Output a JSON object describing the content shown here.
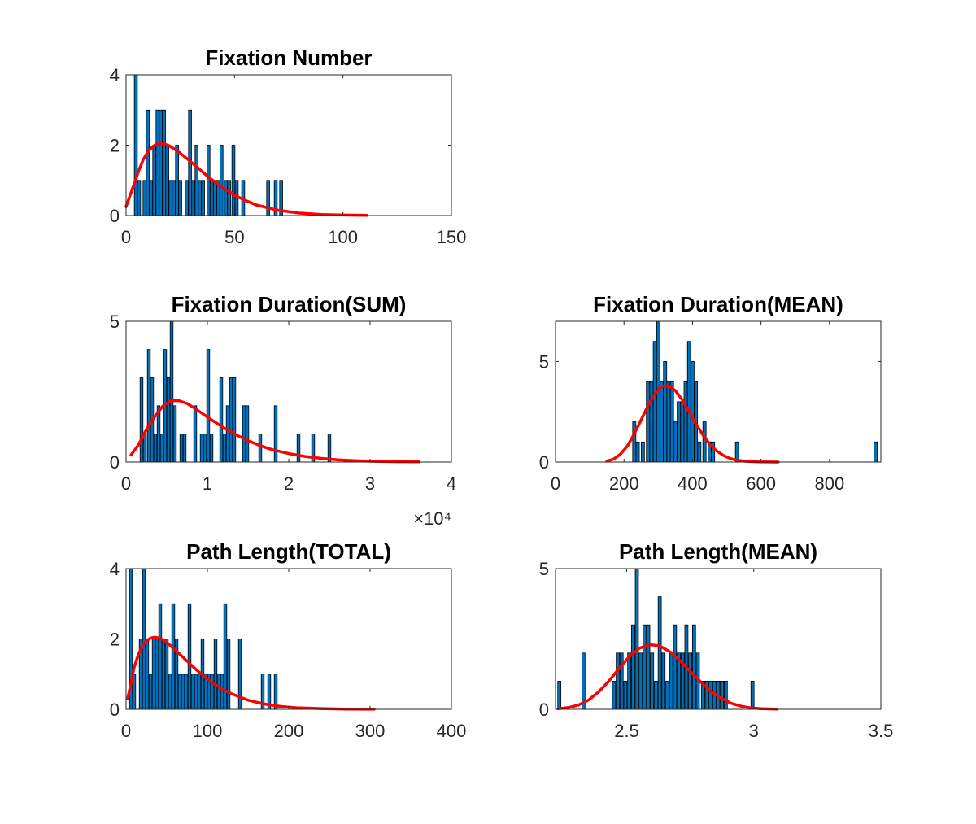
{
  "chart_data": [
    {
      "type": "bar",
      "title": "Fixation Number",
      "xlim": [
        0,
        150
      ],
      "ylim": [
        0,
        4
      ],
      "xticks": [
        0,
        50,
        100,
        150
      ],
      "xtick_labels": [
        "0",
        "50",
        "100",
        "150"
      ],
      "yticks": [
        0,
        2,
        4
      ],
      "ytick_labels": [
        "0",
        "2",
        "4"
      ],
      "exponent_label": "",
      "bin_width": 1.4,
      "bars": [
        {
          "x": 4.5,
          "y": 4
        },
        {
          "x": 6,
          "y": 1
        },
        {
          "x": 8.5,
          "y": 1
        },
        {
          "x": 10,
          "y": 3
        },
        {
          "x": 11.5,
          "y": 1
        },
        {
          "x": 13,
          "y": 2
        },
        {
          "x": 14.5,
          "y": 3
        },
        {
          "x": 16,
          "y": 3
        },
        {
          "x": 17.5,
          "y": 3
        },
        {
          "x": 19,
          "y": 2
        },
        {
          "x": 20.5,
          "y": 1
        },
        {
          "x": 22,
          "y": 1
        },
        {
          "x": 23.5,
          "y": 2
        },
        {
          "x": 25,
          "y": 1
        },
        {
          "x": 28,
          "y": 1
        },
        {
          "x": 29.5,
          "y": 3
        },
        {
          "x": 31,
          "y": 1
        },
        {
          "x": 32.5,
          "y": 2
        },
        {
          "x": 34,
          "y": 1
        },
        {
          "x": 35.5,
          "y": 1
        },
        {
          "x": 38,
          "y": 2
        },
        {
          "x": 39.5,
          "y": 1
        },
        {
          "x": 41,
          "y": 1
        },
        {
          "x": 42.5,
          "y": 1
        },
        {
          "x": 44,
          "y": 2
        },
        {
          "x": 46,
          "y": 1
        },
        {
          "x": 47.5,
          "y": 1
        },
        {
          "x": 49.5,
          "y": 2
        },
        {
          "x": 51,
          "y": 1
        },
        {
          "x": 54,
          "y": 1
        },
        {
          "x": 65.5,
          "y": 1
        },
        {
          "x": 69,
          "y": 1
        },
        {
          "x": 71.5,
          "y": 1
        }
      ],
      "fit": {
        "x": [
          0,
          2,
          4,
          6,
          8,
          10,
          12,
          14,
          16,
          18,
          20,
          24,
          28,
          32,
          36,
          40,
          45,
          50,
          55,
          60,
          70,
          80,
          90,
          100,
          111
        ],
        "y": [
          0.25,
          0.6,
          0.95,
          1.3,
          1.6,
          1.8,
          1.95,
          2.03,
          2.05,
          2.03,
          1.98,
          1.82,
          1.62,
          1.42,
          1.2,
          1.0,
          0.78,
          0.58,
          0.43,
          0.3,
          0.15,
          0.07,
          0.03,
          0.015,
          0.005
        ]
      }
    },
    {
      "type": "bar",
      "title": "Fixation Duration(SUM)",
      "xlim": [
        0,
        40000
      ],
      "ylim": [
        0,
        5
      ],
      "xticks": [
        0,
        10000,
        20000,
        30000,
        40000
      ],
      "xtick_labels": [
        "0",
        "1",
        "2",
        "3",
        "4"
      ],
      "yticks": [
        0,
        5
      ],
      "ytick_labels": [
        "0",
        "5"
      ],
      "exponent_label": "×10⁴",
      "bin_width": 360,
      "bars": [
        {
          "x": 1900,
          "y": 3
        },
        {
          "x": 2300,
          "y": 1
        },
        {
          "x": 2800,
          "y": 4
        },
        {
          "x": 3200,
          "y": 3
        },
        {
          "x": 3600,
          "y": 1
        },
        {
          "x": 4000,
          "y": 2
        },
        {
          "x": 4400,
          "y": 1
        },
        {
          "x": 4800,
          "y": 4
        },
        {
          "x": 5200,
          "y": 3
        },
        {
          "x": 5600,
          "y": 5
        },
        {
          "x": 6000,
          "y": 2
        },
        {
          "x": 6800,
          "y": 1
        },
        {
          "x": 7200,
          "y": 1
        },
        {
          "x": 8500,
          "y": 2
        },
        {
          "x": 9300,
          "y": 1
        },
        {
          "x": 9700,
          "y": 1
        },
        {
          "x": 10100,
          "y": 4
        },
        {
          "x": 10500,
          "y": 1
        },
        {
          "x": 11700,
          "y": 3
        },
        {
          "x": 12100,
          "y": 1
        },
        {
          "x": 12500,
          "y": 2
        },
        {
          "x": 12900,
          "y": 3
        },
        {
          "x": 13300,
          "y": 3
        },
        {
          "x": 14500,
          "y": 2
        },
        {
          "x": 14900,
          "y": 2
        },
        {
          "x": 16500,
          "y": 1
        },
        {
          "x": 18400,
          "y": 2
        },
        {
          "x": 21200,
          "y": 1
        },
        {
          "x": 23000,
          "y": 1
        },
        {
          "x": 25000,
          "y": 1
        }
      ],
      "fit": {
        "x": [
          600,
          1500,
          2500,
          3500,
          4500,
          5500,
          6500,
          7500,
          8500,
          9500,
          10500,
          12000,
          13500,
          15000,
          16500,
          18000,
          20000,
          22000,
          24000,
          26000,
          28000,
          30000,
          33000,
          36000
        ],
        "y": [
          0.25,
          0.6,
          1.15,
          1.6,
          1.98,
          2.18,
          2.18,
          2.08,
          1.9,
          1.7,
          1.5,
          1.22,
          0.97,
          0.76,
          0.58,
          0.44,
          0.3,
          0.2,
          0.13,
          0.08,
          0.05,
          0.03,
          0.012,
          0.005
        ]
      }
    },
    {
      "type": "bar",
      "title": "Fixation Duration(MEAN)",
      "xlim": [
        0,
        950
      ],
      "ylim": [
        0,
        7
      ],
      "xticks": [
        0,
        200,
        400,
        600,
        800
      ],
      "xtick_labels": [
        "0",
        "200",
        "400",
        "600",
        "800"
      ],
      "yticks": [
        0,
        5
      ],
      "ytick_labels": [
        "0",
        "5"
      ],
      "exponent_label": "",
      "bin_width": 9.5,
      "bars": [
        {
          "x": 230,
          "y": 2
        },
        {
          "x": 240,
          "y": 1
        },
        {
          "x": 255,
          "y": 1
        },
        {
          "x": 270,
          "y": 4
        },
        {
          "x": 280,
          "y": 4
        },
        {
          "x": 290,
          "y": 6
        },
        {
          "x": 300,
          "y": 7
        },
        {
          "x": 310,
          "y": 4
        },
        {
          "x": 320,
          "y": 5
        },
        {
          "x": 330,
          "y": 4
        },
        {
          "x": 340,
          "y": 4
        },
        {
          "x": 350,
          "y": 2
        },
        {
          "x": 360,
          "y": 3
        },
        {
          "x": 370,
          "y": 3
        },
        {
          "x": 380,
          "y": 4
        },
        {
          "x": 390,
          "y": 6
        },
        {
          "x": 400,
          "y": 5
        },
        {
          "x": 410,
          "y": 4
        },
        {
          "x": 420,
          "y": 1
        },
        {
          "x": 435,
          "y": 2
        },
        {
          "x": 450,
          "y": 1
        },
        {
          "x": 460,
          "y": 1
        },
        {
          "x": 530,
          "y": 1
        },
        {
          "x": 935,
          "y": 1
        }
      ],
      "fit": {
        "x": [
          150,
          170,
          190,
          210,
          230,
          250,
          270,
          290,
          310,
          330,
          350,
          370,
          390,
          410,
          430,
          450,
          470,
          490,
          510,
          530,
          560,
          590,
          620,
          650
        ],
        "y": [
          0.05,
          0.15,
          0.4,
          0.8,
          1.4,
          2.1,
          2.8,
          3.4,
          3.75,
          3.8,
          3.55,
          3.1,
          2.5,
          1.9,
          1.35,
          0.9,
          0.56,
          0.33,
          0.18,
          0.09,
          0.03,
          0.01,
          0.003,
          0.001
        ]
      }
    },
    {
      "type": "bar",
      "title": "Path Length(TOTAL)",
      "xlim": [
        0,
        400
      ],
      "ylim": [
        0,
        4
      ],
      "xticks": [
        0,
        100,
        200,
        300,
        400
      ],
      "xtick_labels": [
        "0",
        "100",
        "200",
        "300",
        "400"
      ],
      "yticks": [
        0,
        2,
        4
      ],
      "ytick_labels": [
        "0",
        "2",
        "4"
      ],
      "exponent_label": "",
      "bin_width": 3.6,
      "bars": [
        {
          "x": 6,
          "y": 4
        },
        {
          "x": 10,
          "y": 1
        },
        {
          "x": 18,
          "y": 2
        },
        {
          "x": 22,
          "y": 4
        },
        {
          "x": 26,
          "y": 2
        },
        {
          "x": 30,
          "y": 1
        },
        {
          "x": 34,
          "y": 2
        },
        {
          "x": 38,
          "y": 2
        },
        {
          "x": 42,
          "y": 3
        },
        {
          "x": 46,
          "y": 2
        },
        {
          "x": 50,
          "y": 2
        },
        {
          "x": 54,
          "y": 1
        },
        {
          "x": 58,
          "y": 3
        },
        {
          "x": 62,
          "y": 2
        },
        {
          "x": 66,
          "y": 1
        },
        {
          "x": 70,
          "y": 1
        },
        {
          "x": 74,
          "y": 1
        },
        {
          "x": 78,
          "y": 3
        },
        {
          "x": 82,
          "y": 1
        },
        {
          "x": 86,
          "y": 1
        },
        {
          "x": 90,
          "y": 1
        },
        {
          "x": 94,
          "y": 2
        },
        {
          "x": 98,
          "y": 1
        },
        {
          "x": 102,
          "y": 1
        },
        {
          "x": 106,
          "y": 1
        },
        {
          "x": 110,
          "y": 2
        },
        {
          "x": 114,
          "y": 1
        },
        {
          "x": 118,
          "y": 1
        },
        {
          "x": 122,
          "y": 3
        },
        {
          "x": 126,
          "y": 2
        },
        {
          "x": 140,
          "y": 2
        },
        {
          "x": 168,
          "y": 1
        },
        {
          "x": 176,
          "y": 1
        },
        {
          "x": 184,
          "y": 1
        }
      ],
      "fit": {
        "x": [
          2,
          6,
          10,
          15,
          20,
          25,
          30,
          35,
          40,
          45,
          50,
          60,
          70,
          80,
          90,
          100,
          115,
          130,
          150,
          170,
          190,
          210,
          240,
          270,
          305
        ],
        "y": [
          0.3,
          0.75,
          1.2,
          1.55,
          1.8,
          1.95,
          2.02,
          2.05,
          2.03,
          1.98,
          1.9,
          1.7,
          1.48,
          1.26,
          1.05,
          0.86,
          0.62,
          0.44,
          0.26,
          0.15,
          0.08,
          0.045,
          0.02,
          0.008,
          0.003
        ]
      }
    },
    {
      "type": "bar",
      "title": "Path Length(MEAN)",
      "xlim": [
        2.22,
        3.5
      ],
      "ylim": [
        0,
        5
      ],
      "xticks": [
        2.5,
        3,
        3.5
      ],
      "xtick_labels": [
        "2.5",
        "3",
        "3.5"
      ],
      "yticks": [
        0,
        5
      ],
      "ytick_labels": [
        "0",
        "5"
      ],
      "exponent_label": "",
      "bin_width": 0.0125,
      "bars": [
        {
          "x": 2.235,
          "y": 1
        },
        {
          "x": 2.33,
          "y": 2
        },
        {
          "x": 2.45,
          "y": 1
        },
        {
          "x": 2.465,
          "y": 2
        },
        {
          "x": 2.48,
          "y": 2
        },
        {
          "x": 2.495,
          "y": 1
        },
        {
          "x": 2.51,
          "y": 2
        },
        {
          "x": 2.525,
          "y": 3
        },
        {
          "x": 2.54,
          "y": 5
        },
        {
          "x": 2.555,
          "y": 2
        },
        {
          "x": 2.57,
          "y": 3
        },
        {
          "x": 2.585,
          "y": 3
        },
        {
          "x": 2.6,
          "y": 2
        },
        {
          "x": 2.615,
          "y": 1
        },
        {
          "x": 2.63,
          "y": 4
        },
        {
          "x": 2.645,
          "y": 2
        },
        {
          "x": 2.66,
          "y": 1
        },
        {
          "x": 2.675,
          "y": 2
        },
        {
          "x": 2.69,
          "y": 3
        },
        {
          "x": 2.705,
          "y": 2
        },
        {
          "x": 2.72,
          "y": 2
        },
        {
          "x": 2.735,
          "y": 3
        },
        {
          "x": 2.75,
          "y": 2
        },
        {
          "x": 2.765,
          "y": 3
        },
        {
          "x": 2.78,
          "y": 2
        },
        {
          "x": 2.8,
          "y": 1
        },
        {
          "x": 2.815,
          "y": 1
        },
        {
          "x": 2.83,
          "y": 1
        },
        {
          "x": 2.845,
          "y": 1
        },
        {
          "x": 2.86,
          "y": 1
        },
        {
          "x": 2.875,
          "y": 1
        },
        {
          "x": 2.89,
          "y": 1
        },
        {
          "x": 2.995,
          "y": 1
        }
      ],
      "fit": {
        "x": [
          2.23,
          2.27,
          2.31,
          2.35,
          2.39,
          2.43,
          2.47,
          2.51,
          2.55,
          2.59,
          2.63,
          2.67,
          2.71,
          2.75,
          2.79,
          2.83,
          2.87,
          2.91,
          2.95,
          2.99,
          3.03,
          3.09
        ],
        "y": [
          0.02,
          0.06,
          0.15,
          0.33,
          0.62,
          1.0,
          1.45,
          1.87,
          2.17,
          2.3,
          2.25,
          2.05,
          1.73,
          1.35,
          0.98,
          0.65,
          0.4,
          0.22,
          0.11,
          0.05,
          0.02,
          0.005
        ]
      }
    }
  ]
}
